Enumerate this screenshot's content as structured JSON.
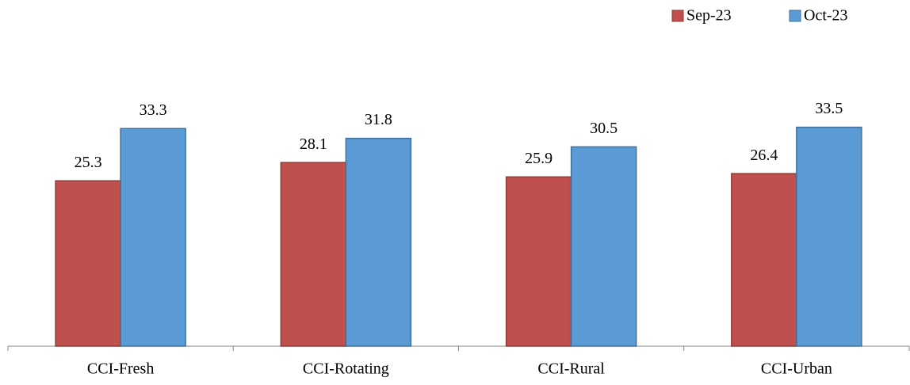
{
  "chart_data": {
    "type": "bar",
    "categories": [
      "CCI-Fresh",
      "CCI-Rotating",
      "CCI-Rural",
      "CCI-Urban"
    ],
    "series": [
      {
        "name": "Sep-23",
        "color": "#c0504d",
        "values": [
          25.3,
          28.1,
          25.9,
          26.4
        ]
      },
      {
        "name": "Oct-23",
        "color": "#5b9bd5",
        "values": [
          33.3,
          31.8,
          30.5,
          33.5
        ]
      }
    ],
    "ylim": [
      0,
      40
    ],
    "legend": "top-right",
    "grid": false
  }
}
